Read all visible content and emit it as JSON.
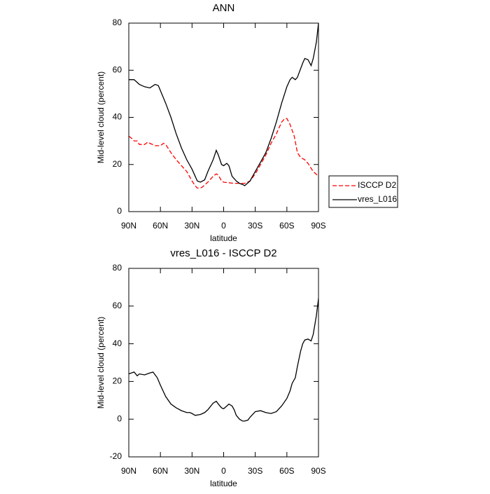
{
  "chart_data": [
    {
      "type": "line",
      "title": "ANN",
      "xlabel": "latitude",
      "ylabel": "Mid-level cloud (percent)",
      "xlim": [
        90,
        -90
      ],
      "ylim": [
        0,
        80
      ],
      "xticks": [
        {
          "value": 90,
          "label": "90N"
        },
        {
          "value": 60,
          "label": "60N"
        },
        {
          "value": 30,
          "label": "30N"
        },
        0,
        {
          "value": -30,
          "label": "30S"
        },
        {
          "value": -60,
          "label": "60S"
        },
        {
          "value": -90,
          "label": "90S"
        }
      ],
      "yticks": [
        0,
        20,
        40,
        60,
        80
      ],
      "legend": "right",
      "series": [
        {
          "name": "ISCCP D2",
          "color": "#ff0000",
          "dash": true,
          "x": [
            90,
            87,
            85,
            82,
            80,
            75,
            72,
            70,
            65,
            60,
            57,
            55,
            50,
            45,
            40,
            35,
            30,
            27,
            25,
            22,
            20,
            15,
            10,
            7,
            5,
            2,
            0,
            -10,
            -20,
            -25,
            -30,
            -35,
            -40,
            -45,
            -50,
            -55,
            -58,
            -60,
            -63,
            -67,
            -70,
            -73,
            -77,
            -80,
            -85,
            -90
          ],
          "values": [
            32,
            31,
            30,
            30,
            28.5,
            28.5,
            29.5,
            29,
            28,
            28,
            29,
            28.5,
            25,
            22,
            19.5,
            17,
            13,
            11,
            10,
            10,
            10.5,
            12.5,
            15,
            16,
            15.5,
            13,
            12.5,
            12,
            12,
            13,
            16,
            20,
            24,
            29,
            33,
            38,
            39.5,
            39.5,
            37,
            32,
            25,
            23,
            22,
            20.5,
            17,
            15
          ]
        },
        {
          "name": "vres_L016",
          "color": "#000000",
          "dash": false,
          "x": [
            90,
            85,
            80,
            75,
            70,
            65,
            62,
            55,
            50,
            45,
            40,
            35,
            30,
            27,
            25,
            22,
            18,
            15,
            10,
            7,
            5,
            2,
            0,
            -3,
            -5,
            -8,
            -12,
            -15,
            -18,
            -20,
            -25,
            -30,
            -35,
            -40,
            -45,
            -50,
            -55,
            -60,
            -63,
            -65,
            -68,
            -70,
            -75,
            -77,
            -80,
            -83,
            -85,
            -88,
            -90
          ],
          "values": [
            56,
            56,
            54,
            53,
            52.5,
            54,
            53.5,
            46,
            40,
            33,
            27,
            22,
            18,
            15,
            13,
            12.5,
            13.5,
            17,
            22,
            26,
            24,
            20,
            19.5,
            20.5,
            19.5,
            15,
            13,
            12,
            11.5,
            11,
            13,
            17,
            21,
            25,
            31,
            38,
            46,
            53,
            56,
            57,
            56,
            57,
            63,
            65,
            64.5,
            62,
            65,
            72,
            80
          ]
        }
      ]
    },
    {
      "type": "line",
      "title": "vres_L016 - ISCCP D2",
      "xlabel": "latitude",
      "ylabel": "Mid-level cloud (percent)",
      "xlim": [
        90,
        -90
      ],
      "ylim": [
        -20,
        80
      ],
      "xticks": [
        {
          "value": 90,
          "label": "90N"
        },
        {
          "value": 60,
          "label": "60N"
        },
        {
          "value": 30,
          "label": "30N"
        },
        0,
        {
          "value": -30,
          "label": "30S"
        },
        {
          "value": -60,
          "label": "60S"
        },
        {
          "value": -90,
          "label": "90S"
        }
      ],
      "yticks": [
        -20,
        0,
        20,
        40,
        60,
        80
      ],
      "series": [
        {
          "color": "#000000",
          "dash": false,
          "x": [
            90,
            85,
            82,
            80,
            75,
            70,
            67,
            63,
            60,
            55,
            50,
            45,
            40,
            35,
            32,
            30,
            27,
            22,
            18,
            15,
            10,
            7,
            5,
            2,
            0,
            -3,
            -5,
            -8,
            -10,
            -12,
            -15,
            -18,
            -20,
            -23,
            -25,
            -30,
            -35,
            -40,
            -45,
            -50,
            -55,
            -60,
            -63,
            -65,
            -68,
            -70,
            -73,
            -75,
            -77,
            -80,
            -83,
            -85,
            -88,
            -90
          ],
          "values": [
            24,
            25,
            23,
            24,
            23.5,
            24.5,
            25,
            22,
            18,
            12,
            8,
            6,
            4.5,
            3.5,
            3.5,
            3,
            2,
            2.5,
            3.5,
            5,
            8.5,
            9.5,
            8,
            6,
            5.5,
            7,
            8,
            7,
            5,
            2,
            0,
            -1,
            -1,
            -0.5,
            1,
            4,
            4.5,
            3.5,
            3,
            4,
            7,
            11,
            15,
            19,
            22,
            28,
            36,
            40,
            42,
            42.5,
            41.5,
            45,
            55,
            64
          ]
        }
      ]
    }
  ]
}
